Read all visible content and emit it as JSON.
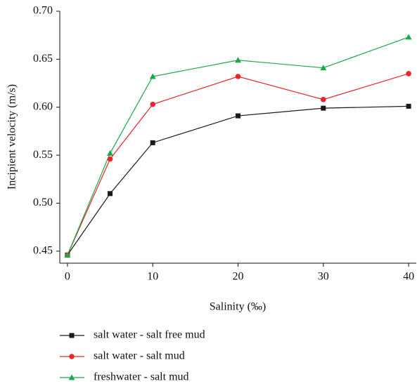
{
  "chart_data": {
    "type": "line",
    "x_label": "Salinity (‰)",
    "y_label": "Incipient velocity (m/s)",
    "x": [
      0,
      5,
      10,
      20,
      30,
      40
    ],
    "xlim": [
      -0.9,
      40.9
    ],
    "xticks": [
      0,
      10,
      20,
      30,
      40
    ],
    "ylim": [
      0.4375,
      0.7
    ],
    "yticks": [
      0.45,
      {
        "value": 0.5,
        "label": "0.50"
      },
      0.55,
      {
        "value": 0.6,
        "label": "0.60"
      },
      0.65,
      {
        "value": 0.7,
        "label": "0.70"
      }
    ],
    "legend": "bottom-left",
    "series": [
      {
        "name": "salt water - salt free mud",
        "color": "#1a1a1a",
        "marker": "square",
        "values": [
          0.446,
          0.51,
          0.563,
          0.591,
          0.599,
          0.601
        ]
      },
      {
        "name": "salt water - salt mud",
        "color": "#e8262b",
        "marker": "circle",
        "values": [
          0.446,
          0.546,
          0.603,
          0.632,
          0.608,
          0.635
        ]
      },
      {
        "name": "freshwater - salt mud",
        "color": "#1aa84a",
        "marker": "triangle",
        "values": [
          0.446,
          0.552,
          0.632,
          0.649,
          0.641,
          0.673
        ]
      }
    ]
  }
}
